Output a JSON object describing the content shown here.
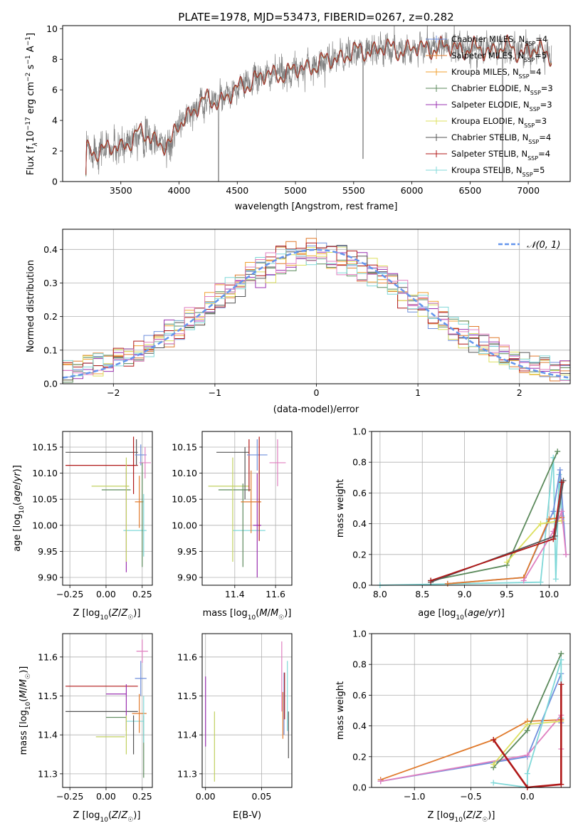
{
  "colors": {
    "chab_miles": "#6f8fdc",
    "salp_miles": "#e07a2c",
    "krou_miles": "#f0a030",
    "chab_elodie": "#5c8a5c",
    "salp_elodie": "#9a30b0",
    "krou_elodie": "#dde060",
    "chab_stelib": "#555555",
    "salp_stelib": "#b01818",
    "krou_stelib": "#80d8d8",
    "pink": "#e080c0",
    "olive": "#c0d060",
    "data": "#808080",
    "normal": "#6495ed"
  },
  "chart_data": [
    {
      "id": "spectrum",
      "type": "line",
      "title": "PLATE=1978, MJD=53473, FIBERID=0267, z=0.282",
      "xlabel": "wavelength [Angstrom, rest frame]",
      "ylabel": "Flux [f$_\\lambda$10$^{-17}$ erg cm$^{-2}$ s$^{-1}$ A$^{-1}$]",
      "xlim": [
        3000,
        7360
      ],
      "ylim": [
        0,
        10.2
      ],
      "xticks": [
        3500,
        4000,
        4500,
        5000,
        5500,
        6000,
        6500,
        7000
      ],
      "yticks": [
        0,
        2,
        4,
        6,
        8,
        10
      ],
      "grid": false,
      "legend_position": "right",
      "legend": [
        {
          "color": "chab_miles",
          "label": "Chabrier MILES, N",
          "sub": "SSP",
          "suffix": "=4"
        },
        {
          "color": "salp_miles",
          "label": "Salpeter MILES, N",
          "sub": "SSP",
          "suffix": "=5"
        },
        {
          "color": "krou_miles",
          "label": "Kroupa MILES, N",
          "sub": "SSP",
          "suffix": "=4"
        },
        {
          "color": "chab_elodie",
          "label": "Chabrier ELODIE, N",
          "sub": "SSP",
          "suffix": "=3"
        },
        {
          "color": "salp_elodie",
          "label": "Salpeter ELODIE, N",
          "sub": "SSP",
          "suffix": "=3"
        },
        {
          "color": "krou_elodie",
          "label": "Kroupa ELODIE, N",
          "sub": "SSP",
          "suffix": "=3"
        },
        {
          "color": "chab_stelib",
          "label": "Chabrier STELIB, N",
          "sub": "SSP",
          "suffix": "=4"
        },
        {
          "color": "salp_stelib",
          "label": "Salpeter STELIB, N",
          "sub": "SSP",
          "suffix": "=4"
        },
        {
          "color": "krou_stelib",
          "label": "Kroupa STELIB, N",
          "sub": "SSP",
          "suffix": "=5"
        }
      ],
      "continuum": [
        [
          3200,
          0.0
        ],
        [
          3205,
          1.9
        ],
        [
          3300,
          2.1
        ],
        [
          3400,
          2.2
        ],
        [
          3500,
          2.1
        ],
        [
          3550,
          2.6
        ],
        [
          3650,
          3.2
        ],
        [
          3750,
          2.8
        ],
        [
          3850,
          2.6
        ],
        [
          3930,
          2.3
        ],
        [
          3980,
          3.5
        ],
        [
          4050,
          4.2
        ],
        [
          4150,
          4.9
        ],
        [
          4250,
          5.3
        ],
        [
          4350,
          5.3
        ],
        [
          4450,
          5.7
        ],
        [
          4550,
          6.3
        ],
        [
          4650,
          6.7
        ],
        [
          4750,
          6.9
        ],
        [
          4850,
          7.1
        ],
        [
          4950,
          7.1
        ],
        [
          5050,
          7.4
        ],
        [
          5150,
          7.6
        ],
        [
          5250,
          7.8
        ],
        [
          5350,
          8.1
        ],
        [
          5450,
          8.3
        ],
        [
          5550,
          8.5
        ],
        [
          5650,
          8.6
        ],
        [
          5750,
          8.7
        ],
        [
          5850,
          8.7
        ],
        [
          5950,
          8.6
        ],
        [
          6050,
          8.7
        ],
        [
          6150,
          8.8
        ],
        [
          6250,
          8.7
        ],
        [
          6350,
          8.8
        ],
        [
          6450,
          8.7
        ],
        [
          6550,
          8.6
        ],
        [
          6650,
          8.6
        ],
        [
          6750,
          8.7
        ],
        [
          6850,
          8.7
        ],
        [
          6950,
          8.5
        ],
        [
          7050,
          8.6
        ],
        [
          7150,
          8.4
        ],
        [
          7200,
          8.4
        ]
      ]
    },
    {
      "id": "residuals",
      "type": "step",
      "xlabel": "(data-model)/error",
      "ylabel": "Normed distribution",
      "xlim": [
        -2.5,
        2.5
      ],
      "ylim": [
        0,
        0.46
      ],
      "xticks": [
        -2,
        -1,
        0,
        1,
        2
      ],
      "yticks": [
        0.0,
        0.1,
        0.2,
        0.3,
        0.4
      ],
      "grid": true,
      "legend_position": "top-right",
      "legend": {
        "label": "𝒩(0, 1)",
        "style": "dashed",
        "color": "normal"
      },
      "bin_width": 0.1
    },
    {
      "id": "age_vs_Z",
      "type": "errorbar",
      "xlabel": "Z [log$_{10}$(Z/Z$_\\odot$)]",
      "ylabel": "age  [log$_{10}$(age/yr)]",
      "xlim": [
        -0.3,
        0.32
      ],
      "ylim": [
        9.885,
        10.18
      ],
      "xticks": [
        -0.25,
        0.0,
        0.25
      ],
      "yticks": [
        9.9,
        9.95,
        10.0,
        10.05,
        10.1,
        10.15
      ],
      "grid": true,
      "points": [
        {
          "c": "chab_stelib",
          "x": -0.03,
          "xe": 0.25,
          "y": 10.14,
          "ye": 0.0
        },
        {
          "c": "salp_stelib",
          "x": -0.03,
          "xe": 0.25,
          "y": 10.115,
          "ye": 0.0
        },
        {
          "c": "chab_elodie",
          "x": 0.07,
          "xe": 0.1,
          "y": 10.068,
          "ye": 0.0
        },
        {
          "c": "olive",
          "x": 0.03,
          "xe": 0.13,
          "y": 10.075,
          "ye": 0.0
        },
        {
          "c": "krou_stelib",
          "x": 0.2,
          "xe": 0.08,
          "y": 9.99,
          "ye": 0.0
        },
        {
          "c": "salp_elodie",
          "x": 0.14,
          "xe": 0.0,
          "y": 10.01,
          "ye": 0.1
        },
        {
          "c": "olive",
          "x": 0.14,
          "xe": 0.0,
          "y": 10.03,
          "ye": 0.1
        },
        {
          "c": "salp_stelib",
          "x": 0.19,
          "xe": 0.0,
          "y": 10.115,
          "ye": 0.055
        },
        {
          "c": "chab_stelib",
          "x": 0.21,
          "xe": 0.0,
          "y": 10.14,
          "ye": 0.025
        },
        {
          "c": "salp_miles",
          "x": 0.23,
          "xe": 0.03,
          "y": 10.045,
          "ye": 0.05
        },
        {
          "c": "chab_miles",
          "x": 0.24,
          "xe": 0.04,
          "y": 10.135,
          "ye": 0.02
        },
        {
          "c": "pink",
          "x": 0.27,
          "xe": 0.04,
          "y": 10.12,
          "ye": 0.03
        },
        {
          "c": "chab_elodie",
          "x": 0.25,
          "xe": 0.0,
          "y": 10.02,
          "ye": 0.1
        },
        {
          "c": "krou_stelib",
          "x": 0.26,
          "xe": 0.0,
          "y": 10.0,
          "ye": 0.06
        }
      ]
    },
    {
      "id": "age_vs_mass",
      "type": "errorbar",
      "xlabel": "mass [log$_{10}$(M/M$_\\odot$)]",
      "ylabel": "",
      "xlim": [
        11.24,
        11.68
      ],
      "ylim": [
        9.885,
        10.18
      ],
      "xticks": [
        11.4,
        11.6
      ],
      "yticks": [
        9.9,
        9.95,
        10.0,
        10.05,
        10.1,
        10.15
      ],
      "grid": true,
      "points": [
        {
          "c": "chab_stelib",
          "x": 11.39,
          "xe": 0.08,
          "y": 10.14,
          "ye": 0.0
        },
        {
          "c": "chab_elodie",
          "x": 11.4,
          "xe": 0.08,
          "y": 10.068,
          "ye": 0.0
        },
        {
          "c": "olive",
          "x": 11.37,
          "xe": 0.1,
          "y": 10.075,
          "ye": 0.0
        },
        {
          "c": "krou_stelib",
          "x": 11.47,
          "xe": 0.08,
          "y": 9.99,
          "ye": 0.0
        },
        {
          "c": "olive",
          "x": 11.39,
          "xe": 0.0,
          "y": 10.03,
          "ye": 0.1
        },
        {
          "c": "chab_elodie",
          "x": 11.44,
          "xe": 0.0,
          "y": 10.0,
          "ye": 0.08
        },
        {
          "c": "salp_elodie",
          "x": 11.51,
          "xe": 0.02,
          "y": 10.0,
          "ye": 0.1
        },
        {
          "c": "salp_stelib",
          "x": 11.47,
          "xe": 0.0,
          "y": 10.115,
          "ye": 0.05
        },
        {
          "c": "chab_stelib",
          "x": 11.45,
          "xe": 0.0,
          "y": 10.1,
          "ye": 0.05
        },
        {
          "c": "salp_miles",
          "x": 11.48,
          "xe": 0.05,
          "y": 10.045,
          "ye": 0.06
        },
        {
          "c": "chab_miles",
          "x": 11.51,
          "xe": 0.05,
          "y": 10.135,
          "ye": 0.03
        },
        {
          "c": "salp_stelib",
          "x": 11.52,
          "xe": 0.0,
          "y": 10.07,
          "ye": 0.1
        },
        {
          "c": "pink",
          "x": 11.61,
          "xe": 0.04,
          "y": 10.12,
          "ye": 0.045
        }
      ]
    },
    {
      "id": "weight_vs_age",
      "type": "line",
      "xlabel": "age  [log$_{10}$(age/yr)]",
      "ylabel": "mass weight",
      "xlim": [
        7.9,
        10.25
      ],
      "ylim": [
        0,
        1.0
      ],
      "xticks": [
        8.0,
        8.5,
        9.0,
        9.5,
        10.0
      ],
      "yticks": [
        0.0,
        0.2,
        0.4,
        0.6,
        0.8,
        1.0
      ],
      "grid": true,
      "series": [
        {
          "c": "krou_stelib",
          "x": [
            8.0,
            9.9,
            10.05,
            10.08,
            10.12,
            10.15
          ],
          "y": [
            0.0,
            0.02,
            0.83,
            0.04,
            0.72,
            0.45
          ]
        },
        {
          "c": "chab_elodie",
          "x": [
            8.6,
            9.5,
            10.1
          ],
          "y": [
            0.03,
            0.13,
            0.87
          ]
        },
        {
          "c": "chab_miles",
          "x": [
            8.8,
            9.7,
            10.05,
            10.13,
            10.2
          ],
          "y": [
            0.01,
            0.05,
            0.48,
            0.75,
            0.2
          ]
        },
        {
          "c": "salp_miles",
          "x": [
            8.8,
            9.7,
            10.0,
            10.15
          ],
          "y": [
            0.01,
            0.05,
            0.43,
            0.44
          ]
        },
        {
          "c": "krou_elodie",
          "x": [
            9.5,
            9.9,
            10.15
          ],
          "y": [
            0.15,
            0.4,
            0.42
          ]
        },
        {
          "c": "pink",
          "x": [
            9.7,
            10.05,
            10.15,
            10.2
          ],
          "y": [
            0.03,
            0.35,
            0.48,
            0.2
          ]
        },
        {
          "c": "chab_stelib",
          "x": [
            8.6,
            10.07,
            10.17
          ],
          "y": [
            0.02,
            0.32,
            0.68
          ]
        },
        {
          "c": "salp_stelib",
          "x": [
            8.6,
            10.05,
            10.15
          ],
          "y": [
            0.03,
            0.3,
            0.67
          ]
        }
      ]
    },
    {
      "id": "mass_vs_Z",
      "type": "errorbar",
      "xlabel": "Z [log$_{10}$(Z/Z$_\\odot$)]",
      "ylabel": "mass [log$_{10}$(M/M$_\\odot$)]",
      "xlim": [
        -0.3,
        0.32
      ],
      "ylim": [
        11.265,
        11.66
      ],
      "xticks": [
        -0.25,
        0.0,
        0.25
      ],
      "yticks": [
        11.3,
        11.4,
        11.5,
        11.6
      ],
      "grid": true,
      "points": [
        {
          "c": "salp_stelib",
          "x": -0.03,
          "xe": 0.25,
          "y": 11.525,
          "ye": 0.0
        },
        {
          "c": "chab_stelib",
          "x": -0.03,
          "xe": 0.25,
          "y": 11.46,
          "ye": 0.0
        },
        {
          "c": "salp_elodie",
          "x": 0.07,
          "xe": 0.07,
          "y": 11.505,
          "ye": 0.0
        },
        {
          "c": "chab_elodie",
          "x": 0.07,
          "xe": 0.07,
          "y": 11.445,
          "ye": 0.0
        },
        {
          "c": "olive",
          "x": 0.03,
          "xe": 0.1,
          "y": 11.395,
          "ye": 0.0
        },
        {
          "c": "krou_stelib",
          "x": 0.2,
          "xe": 0.06,
          "y": 11.435,
          "ye": 0.0
        },
        {
          "c": "salp_elodie",
          "x": 0.14,
          "xe": 0.0,
          "y": 11.47,
          "ye": 0.06
        },
        {
          "c": "olive",
          "x": 0.14,
          "xe": 0.0,
          "y": 11.4,
          "ye": 0.05
        },
        {
          "c": "chab_stelib",
          "x": 0.19,
          "xe": 0.0,
          "y": 11.4,
          "ye": 0.05
        },
        {
          "c": "salp_miles",
          "x": 0.23,
          "xe": 0.05,
          "y": 11.455,
          "ye": 0.05
        },
        {
          "c": "chab_miles",
          "x": 0.24,
          "xe": 0.04,
          "y": 11.545,
          "ye": 0.045
        },
        {
          "c": "pink",
          "x": 0.25,
          "xe": 0.04,
          "y": 11.615,
          "ye": 0.03
        },
        {
          "c": "chab_elodie",
          "x": 0.26,
          "xe": 0.0,
          "y": 11.37,
          "ye": 0.08
        },
        {
          "c": "krou_stelib",
          "x": 0.26,
          "xe": 0.0,
          "y": 11.44,
          "ye": 0.06
        }
      ]
    },
    {
      "id": "mass_vs_ebv",
      "type": "errorbar",
      "xlabel": "E(B-V)",
      "ylabel": "",
      "xlim": [
        -0.003,
        0.077
      ],
      "ylim": [
        11.265,
        11.66
      ],
      "xticks": [
        0.0,
        0.05
      ],
      "yticks": [
        11.3,
        11.4,
        11.5,
        11.6
      ],
      "grid": true,
      "points": [
        {
          "c": "salp_elodie",
          "x": 0.0,
          "xe": 0.0,
          "y": 11.46,
          "ye": 0.09
        },
        {
          "c": "olive",
          "x": 0.008,
          "xe": 0.0,
          "y": 11.37,
          "ye": 0.09
        },
        {
          "c": "pink",
          "x": 0.068,
          "xe": 0.0,
          "y": 11.55,
          "ye": 0.09
        },
        {
          "c": "chab_miles",
          "x": 0.07,
          "xe": 0.0,
          "y": 11.48,
          "ye": 0.08
        },
        {
          "c": "salp_stelib",
          "x": 0.0705,
          "xe": 0.0,
          "y": 11.5,
          "ye": 0.06
        },
        {
          "c": "salp_miles",
          "x": 0.069,
          "xe": 0.0,
          "y": 11.45,
          "ye": 0.06
        },
        {
          "c": "krou_stelib",
          "x": 0.073,
          "xe": 0.0,
          "y": 11.5,
          "ye": 0.09
        },
        {
          "c": "chab_stelib",
          "x": 0.074,
          "xe": 0.0,
          "y": 11.4,
          "ye": 0.06
        }
      ]
    },
    {
      "id": "weight_vs_Z",
      "type": "line",
      "xlabel": "Z [log$_{10}$(Z/Z$_\\odot$)]",
      "ylabel": "mass weight",
      "xlim": [
        -1.38,
        0.38
      ],
      "ylim": [
        0,
        1.0
      ],
      "xticks": [
        -1.0,
        -0.5,
        0.0
      ],
      "yticks": [
        0.0,
        0.2,
        0.4,
        0.6,
        0.8,
        1.0
      ],
      "grid": true,
      "series": [
        {
          "c": "salp_miles",
          "x": [
            -1.3,
            -0.3,
            0.0,
            0.3
          ],
          "y": [
            0.05,
            0.31,
            0.43,
            0.44
          ]
        },
        {
          "c": "chab_miles",
          "x": [
            -1.3,
            0.0,
            0.3,
            0.3
          ],
          "y": [
            0.04,
            0.2,
            0.74,
            0.42
          ]
        },
        {
          "c": "pink",
          "x": [
            -1.3,
            0.0,
            0.3,
            0.3
          ],
          "y": [
            0.04,
            0.21,
            0.47,
            0.25
          ]
        },
        {
          "c": "chab_elodie",
          "x": [
            -0.3,
            0.0,
            0.3
          ],
          "y": [
            0.13,
            0.37,
            0.87
          ]
        },
        {
          "c": "krou_elodie",
          "x": [
            -0.3,
            0.0,
            0.3
          ],
          "y": [
            0.15,
            0.41,
            0.43
          ]
        },
        {
          "c": "krou_stelib",
          "x": [
            -0.3,
            0.0,
            0.0,
            0.3,
            0.3
          ],
          "y": [
            0.03,
            0.0,
            0.09,
            0.83,
            0.45
          ]
        },
        {
          "c": "salp_stelib",
          "x": [
            -0.3,
            0.0,
            0.3,
            0.3
          ],
          "y": [
            0.31,
            0.0,
            0.02,
            0.67
          ],
          "thick": true
        }
      ]
    }
  ]
}
